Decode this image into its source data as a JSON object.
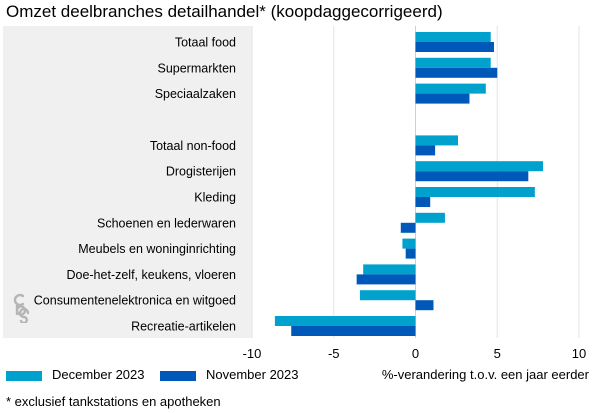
{
  "chart_data": {
    "type": "bar",
    "orientation": "horizontal",
    "title": "Omzet deelbranches detailhandel* (koopdaggecorrigeerd)",
    "xlabel": "%-verandering t.o.v. een jaar eerder",
    "xlim": [
      -10,
      10
    ],
    "xticks": [
      -10,
      -5,
      0,
      5,
      10
    ],
    "categories": [
      "Totaal food",
      "Supermarkten",
      "Speciaalzaken",
      "Totaal non-food",
      "Drogisterijen",
      "Kleding",
      "Schoenen en lederwaren",
      "Meubels en woninginrichting",
      "Doe-het-zelf, keukens, vloeren",
      "Consumentenelektronica en witgoed",
      "Recreatie-artikelen"
    ],
    "series": [
      {
        "name": "December 2023",
        "color": "#00a1cd",
        "values": [
          4.6,
          4.6,
          4.3,
          2.6,
          7.8,
          7.3,
          1.8,
          -0.8,
          -3.2,
          -3.4,
          -8.6
        ]
      },
      {
        "name": "November 2023",
        "color": "#0058b8",
        "values": [
          4.8,
          5.0,
          3.3,
          1.2,
          6.9,
          0.9,
          -0.9,
          -0.6,
          -3.6,
          1.1,
          -7.6
        ]
      }
    ],
    "grid": true,
    "legend": "bottom-left"
  },
  "footnote": "* exclusief tankstations en apotheken"
}
